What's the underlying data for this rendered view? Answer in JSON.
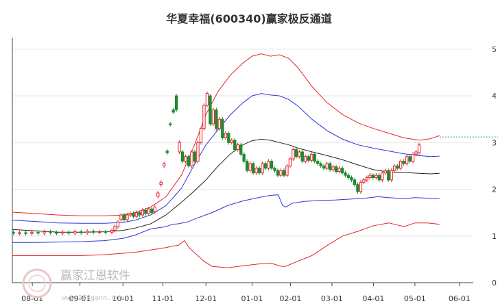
{
  "chart_data": {
    "type": "line",
    "title": "华夏幸福(600340)赢家极反通道",
    "xlabel": "",
    "ylabel": "",
    "ylim": [
      0,
      5.1
    ],
    "yticks": [
      0,
      1,
      2,
      3,
      4,
      5
    ],
    "xlim": [
      0,
      300
    ],
    "x_ticks": [
      {
        "label": "08-01",
        "x": 13
      },
      {
        "label": "09-01",
        "x": 44
      },
      {
        "label": "10-01",
        "x": 72
      },
      {
        "label": "11-01",
        "x": 98
      },
      {
        "label": "12-01",
        "x": 126
      },
      {
        "label": "01-01",
        "x": 156
      },
      {
        "label": "02-01",
        "x": 181
      },
      {
        "label": "03-01",
        "x": 208
      },
      {
        "label": "04-01",
        "x": 235
      },
      {
        "label": "05-01",
        "x": 262
      },
      {
        "label": "06-01",
        "x": 291
      }
    ],
    "grid": true,
    "series": [
      {
        "color": "#e8212a",
        "points": [
          [
            0,
            1.51
          ],
          [
            15,
            1.48
          ],
          [
            30,
            1.45
          ],
          [
            45,
            1.43
          ],
          [
            60,
            1.43
          ],
          [
            72,
            1.45
          ],
          [
            80,
            1.5
          ],
          [
            90,
            1.62
          ],
          [
            100,
            1.84
          ],
          [
            110,
            2.3
          ],
          [
            118,
            2.9
          ],
          [
            126,
            3.6
          ],
          [
            134,
            4.1
          ],
          [
            142,
            4.45
          ],
          [
            150,
            4.7
          ],
          [
            156,
            4.85
          ],
          [
            162,
            4.9
          ],
          [
            168,
            4.85
          ],
          [
            174,
            4.88
          ],
          [
            180,
            4.8
          ],
          [
            186,
            4.6
          ],
          [
            195,
            4.2
          ],
          [
            205,
            3.85
          ],
          [
            215,
            3.6
          ],
          [
            225,
            3.42
          ],
          [
            235,
            3.3
          ],
          [
            245,
            3.2
          ],
          [
            255,
            3.1
          ],
          [
            265,
            3.05
          ],
          [
            272,
            3.08
          ],
          [
            278,
            3.15
          ]
        ]
      },
      {
        "color": "#2b35d9",
        "points": [
          [
            0,
            1.34
          ],
          [
            15,
            1.31
          ],
          [
            30,
            1.28
          ],
          [
            45,
            1.27
          ],
          [
            60,
            1.27
          ],
          [
            72,
            1.29
          ],
          [
            80,
            1.34
          ],
          [
            90,
            1.45
          ],
          [
            100,
            1.65
          ],
          [
            110,
            2.02
          ],
          [
            118,
            2.5
          ],
          [
            126,
            2.95
          ],
          [
            134,
            3.28
          ],
          [
            142,
            3.6
          ],
          [
            150,
            3.85
          ],
          [
            156,
            4.0
          ],
          [
            162,
            4.05
          ],
          [
            168,
            4.02
          ],
          [
            174,
            4.0
          ],
          [
            180,
            3.92
          ],
          [
            186,
            3.78
          ],
          [
            195,
            3.5
          ],
          [
            205,
            3.25
          ],
          [
            215,
            3.07
          ],
          [
            225,
            2.95
          ],
          [
            235,
            2.88
          ],
          [
            245,
            2.82
          ],
          [
            255,
            2.76
          ],
          [
            265,
            2.72
          ],
          [
            272,
            2.7
          ],
          [
            278,
            2.71
          ]
        ]
      },
      {
        "color": "#222222",
        "points": [
          [
            0,
            1.14
          ],
          [
            15,
            1.11
          ],
          [
            30,
            1.08
          ],
          [
            45,
            1.08
          ],
          [
            60,
            1.09
          ],
          [
            72,
            1.12
          ],
          [
            80,
            1.17
          ],
          [
            90,
            1.26
          ],
          [
            100,
            1.45
          ],
          [
            110,
            1.72
          ],
          [
            118,
            1.95
          ],
          [
            126,
            2.2
          ],
          [
            134,
            2.5
          ],
          [
            142,
            2.76
          ],
          [
            150,
            2.95
          ],
          [
            156,
            3.04
          ],
          [
            162,
            3.07
          ],
          [
            168,
            3.05
          ],
          [
            174,
            3.0
          ],
          [
            180,
            2.95
          ],
          [
            186,
            2.88
          ],
          [
            195,
            2.8
          ],
          [
            205,
            2.72
          ],
          [
            215,
            2.63
          ],
          [
            225,
            2.52
          ],
          [
            235,
            2.42
          ],
          [
            245,
            2.37
          ],
          [
            255,
            2.36
          ],
          [
            265,
            2.34
          ],
          [
            272,
            2.33
          ],
          [
            278,
            2.34
          ]
        ]
      },
      {
        "color": "#2b35d9",
        "points": [
          [
            0,
            0.86
          ],
          [
            15,
            0.86
          ],
          [
            30,
            0.87
          ],
          [
            45,
            0.88
          ],
          [
            60,
            0.9
          ],
          [
            72,
            0.95
          ],
          [
            80,
            1.02
          ],
          [
            90,
            1.15
          ],
          [
            100,
            1.2
          ],
          [
            104,
            1.25
          ],
          [
            108,
            1.26
          ],
          [
            114,
            1.3
          ],
          [
            120,
            1.38
          ],
          [
            130,
            1.5
          ],
          [
            140,
            1.65
          ],
          [
            150,
            1.75
          ],
          [
            160,
            1.82
          ],
          [
            168,
            1.87
          ],
          [
            173,
            1.88
          ],
          [
            176,
            1.65
          ],
          [
            178,
            1.62
          ],
          [
            182,
            1.7
          ],
          [
            190,
            1.74
          ],
          [
            200,
            1.76
          ],
          [
            210,
            1.77
          ],
          [
            220,
            1.79
          ],
          [
            230,
            1.81
          ],
          [
            238,
            1.84
          ],
          [
            245,
            1.82
          ],
          [
            255,
            1.8
          ],
          [
            262,
            1.82
          ],
          [
            270,
            1.81
          ],
          [
            278,
            1.8
          ]
        ]
      },
      {
        "color": "#e8212a",
        "points": [
          [
            0,
            0.58
          ],
          [
            15,
            0.58
          ],
          [
            30,
            0.58
          ],
          [
            45,
            0.58
          ],
          [
            60,
            0.6
          ],
          [
            72,
            0.63
          ],
          [
            80,
            0.65
          ],
          [
            90,
            0.7
          ],
          [
            100,
            0.75
          ],
          [
            104,
            0.78
          ],
          [
            108,
            0.8
          ],
          [
            112,
            0.9
          ],
          [
            115,
            0.75
          ],
          [
            120,
            0.6
          ],
          [
            125,
            0.45
          ],
          [
            130,
            0.35
          ],
          [
            140,
            0.32
          ],
          [
            150,
            0.36
          ],
          [
            160,
            0.4
          ],
          [
            168,
            0.42
          ],
          [
            175,
            0.35
          ],
          [
            178,
            0.35
          ],
          [
            185,
            0.45
          ],
          [
            195,
            0.58
          ],
          [
            205,
            0.8
          ],
          [
            215,
            1.0
          ],
          [
            225,
            1.1
          ],
          [
            235,
            1.22
          ],
          [
            245,
            1.28
          ],
          [
            255,
            1.2
          ],
          [
            262,
            1.28
          ],
          [
            270,
            1.28
          ],
          [
            278,
            1.25
          ]
        ]
      },
      {
        "color": "#2f9f4a",
        "style": "dashed",
        "points": [
          [
            278,
            3.12
          ],
          [
            320,
            3.12
          ]
        ]
      }
    ],
    "candles": [
      [
        0,
        1.08,
        1.06
      ],
      [
        4,
        1.05,
        1.07
      ],
      [
        8,
        1.07,
        1.05
      ],
      [
        12,
        1.05,
        1.08
      ],
      [
        16,
        1.08,
        1.06
      ],
      [
        20,
        1.06,
        1.09
      ],
      [
        24,
        1.09,
        1.07
      ],
      [
        28,
        1.07,
        1.06
      ],
      [
        32,
        1.06,
        1.08
      ],
      [
        36,
        1.08,
        1.06
      ],
      [
        40,
        1.06,
        1.09
      ],
      [
        44,
        1.09,
        1.07
      ],
      [
        48,
        1.07,
        1.1
      ],
      [
        52,
        1.1,
        1.08
      ],
      [
        56,
        1.08,
        1.09
      ],
      [
        60,
        1.09,
        1.08
      ],
      [
        64,
        1.08,
        1.12
      ],
      [
        66,
        1.12,
        1.2
      ],
      [
        68,
        1.2,
        1.3
      ],
      [
        70,
        1.35,
        1.45
      ],
      [
        72,
        1.45,
        1.35
      ],
      [
        74,
        1.35,
        1.45
      ],
      [
        76,
        1.45,
        1.48
      ],
      [
        78,
        1.48,
        1.42
      ],
      [
        80,
        1.42,
        1.5
      ],
      [
        82,
        1.5,
        1.45
      ],
      [
        84,
        1.45,
        1.55
      ],
      [
        86,
        1.55,
        1.48
      ],
      [
        88,
        1.48,
        1.58
      ],
      [
        90,
        1.58,
        1.5
      ],
      [
        92,
        1.52,
        1.62
      ],
      [
        94,
        1.85,
        1.92
      ],
      [
        96,
        2.1,
        2.15
      ],
      [
        98,
        2.5,
        2.55
      ],
      [
        100,
        2.82,
        2.78
      ],
      [
        102,
        3.4,
        3.38
      ],
      [
        104,
        3.7,
        3.65
      ],
      [
        106,
        4.0,
        3.7
      ],
      [
        108,
        2.8,
        3.0
      ],
      [
        110,
        2.8,
        2.6
      ],
      [
        112,
        2.6,
        2.7
      ],
      [
        114,
        2.7,
        2.5
      ],
      [
        116,
        2.5,
        2.8
      ],
      [
        118,
        2.8,
        2.6
      ],
      [
        120,
        2.6,
        3.0
      ],
      [
        122,
        3.0,
        3.3
      ],
      [
        124,
        3.3,
        3.8
      ],
      [
        126,
        3.8,
        4.05
      ],
      [
        128,
        4.0,
        3.4
      ],
      [
        130,
        3.4,
        3.7
      ],
      [
        132,
        3.7,
        3.3
      ],
      [
        134,
        3.3,
        3.5
      ],
      [
        136,
        3.5,
        3.1
      ],
      [
        138,
        3.1,
        3.2
      ],
      [
        140,
        3.2,
        3.0
      ],
      [
        142,
        3.0,
        3.05
      ],
      [
        144,
        3.05,
        2.85
      ],
      [
        146,
        2.85,
        2.95
      ],
      [
        148,
        2.95,
        2.75
      ],
      [
        150,
        2.75,
        2.6
      ],
      [
        152,
        2.6,
        2.4
      ],
      [
        154,
        2.4,
        2.55
      ],
      [
        156,
        2.55,
        2.35
      ],
      [
        158,
        2.35,
        2.45
      ],
      [
        160,
        2.45,
        2.35
      ],
      [
        162,
        2.35,
        2.55
      ],
      [
        164,
        2.55,
        2.45
      ],
      [
        166,
        2.45,
        2.6
      ],
      [
        168,
        2.6,
        2.45
      ],
      [
        170,
        2.45,
        2.4
      ],
      [
        172,
        2.4,
        2.3
      ],
      [
        174,
        2.3,
        2.4
      ],
      [
        176,
        2.4,
        2.3
      ],
      [
        178,
        2.3,
        2.5
      ],
      [
        180,
        2.5,
        2.65
      ],
      [
        182,
        2.65,
        2.85
      ],
      [
        184,
        2.85,
        2.7
      ],
      [
        186,
        2.7,
        2.8
      ],
      [
        188,
        2.8,
        2.6
      ],
      [
        190,
        2.6,
        2.7
      ],
      [
        192,
        2.7,
        2.62
      ],
      [
        194,
        2.62,
        2.75
      ],
      [
        196,
        2.75,
        2.6
      ],
      [
        198,
        2.6,
        2.55
      ],
      [
        200,
        2.55,
        2.5
      ],
      [
        202,
        2.5,
        2.45
      ],
      [
        204,
        2.45,
        2.55
      ],
      [
        206,
        2.55,
        2.42
      ],
      [
        208,
        2.42,
        2.48
      ],
      [
        210,
        2.48,
        2.38
      ],
      [
        212,
        2.38,
        2.45
      ],
      [
        214,
        2.45,
        2.35
      ],
      [
        216,
        2.35,
        2.3
      ],
      [
        218,
        2.3,
        2.25
      ],
      [
        220,
        2.25,
        2.2
      ],
      [
        222,
        2.2,
        2.1
      ],
      [
        224,
        2.1,
        1.95
      ],
      [
        226,
        1.95,
        2.15
      ],
      [
        228,
        2.15,
        2.2
      ],
      [
        230,
        2.2,
        2.25
      ],
      [
        232,
        2.25,
        2.3
      ],
      [
        234,
        2.3,
        2.25
      ],
      [
        236,
        2.25,
        2.3
      ],
      [
        238,
        2.3,
        2.2
      ],
      [
        240,
        2.2,
        2.35
      ],
      [
        242,
        2.35,
        2.4
      ],
      [
        244,
        2.4,
        2.2
      ],
      [
        246,
        2.2,
        2.4
      ],
      [
        248,
        2.4,
        2.5
      ],
      [
        250,
        2.5,
        2.45
      ],
      [
        252,
        2.45,
        2.6
      ],
      [
        254,
        2.6,
        2.55
      ],
      [
        256,
        2.55,
        2.7
      ],
      [
        258,
        2.7,
        2.6
      ],
      [
        260,
        2.6,
        2.75
      ],
      [
        262,
        2.75,
        2.8
      ],
      [
        264,
        2.78,
        2.95
      ]
    ]
  },
  "watermark": {
    "brand": "赢家江恩软件",
    "url": "www.360gann.com"
  }
}
